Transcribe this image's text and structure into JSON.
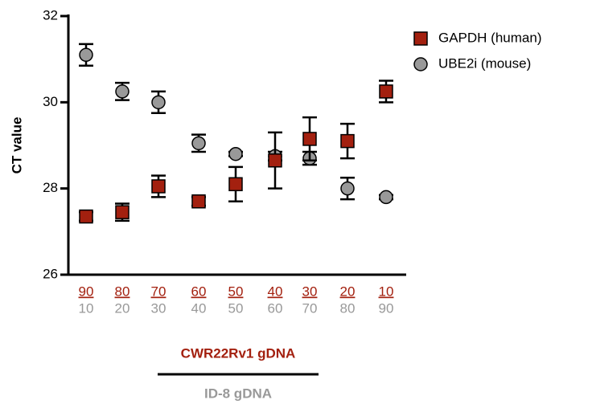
{
  "chart_data": {
    "type": "errorbar-scatter",
    "y_label": "CT value",
    "categories": [
      90,
      80,
      70,
      60,
      50,
      40,
      30,
      20,
      10
    ],
    "categories_bottom": [
      10,
      20,
      30,
      40,
      50,
      60,
      70,
      80,
      90
    ],
    "group_label_top": "CWR22Rv1 gDNA",
    "group_label_bottom": "ID-8 gDNA",
    "ylim": [
      26,
      32
    ],
    "yticks": [
      26,
      28,
      30,
      32
    ],
    "series": [
      {
        "name": "GAPDH (human)",
        "color": "#a3200f",
        "marker": "square",
        "values": [
          27.35,
          27.45,
          28.05,
          27.7,
          28.1,
          28.65,
          29.15,
          29.1,
          30.25
        ],
        "errors": [
          0.1,
          0.2,
          0.25,
          0.1,
          0.4,
          0.65,
          0.5,
          0.4,
          0.25
        ]
      },
      {
        "name": "UBE2i (mouse)",
        "color": "#999999",
        "marker": "circle",
        "values": [
          31.1,
          30.25,
          30.0,
          29.05,
          28.8,
          28.75,
          28.7,
          28.0,
          27.8
        ],
        "errors": [
          0.25,
          0.2,
          0.25,
          0.2,
          0.05,
          0.1,
          0.15,
          0.25,
          0.05
        ]
      }
    ]
  }
}
